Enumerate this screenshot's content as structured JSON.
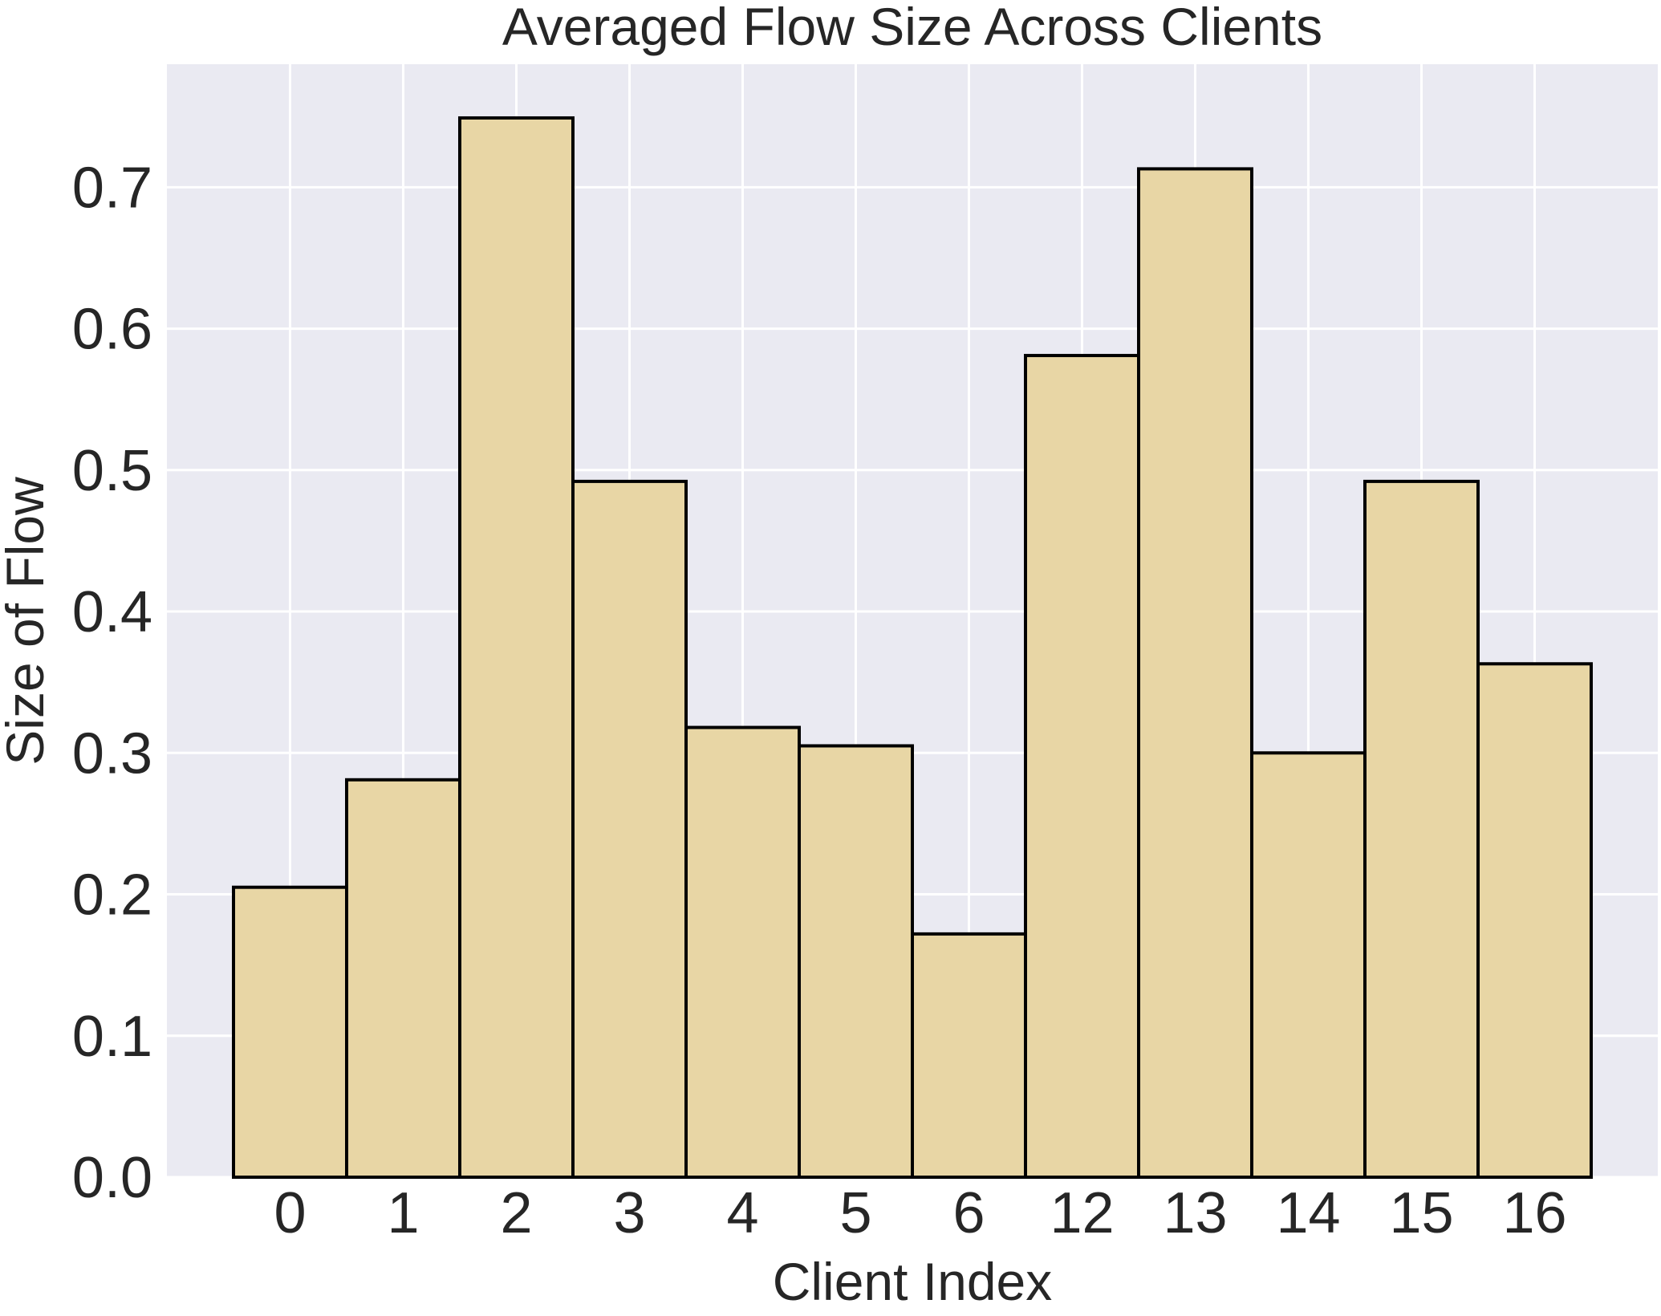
{
  "chart_data": {
    "type": "bar",
    "title": "Averaged Flow Size Across Clients",
    "xlabel": "Client Index",
    "ylabel": "Size of Flow",
    "categories": [
      "0",
      "1",
      "2",
      "3",
      "4",
      "5",
      "6",
      "12",
      "13",
      "14",
      "15",
      "16"
    ],
    "values": [
      0.205,
      0.281,
      0.749,
      0.492,
      0.318,
      0.305,
      0.172,
      0.581,
      0.713,
      0.3,
      0.492,
      0.363
    ],
    "ylim": [
      0,
      0.787
    ],
    "yticks": [
      "0.0",
      "0.1",
      "0.2",
      "0.3",
      "0.4",
      "0.5",
      "0.6",
      "0.7"
    ],
    "grid": true,
    "colors": {
      "bar_fill": "#e8d6a5",
      "bar_edge": "#000000",
      "plot_background": "#eaeaf2",
      "grid": "#ffffff",
      "text": "#262626"
    }
  }
}
